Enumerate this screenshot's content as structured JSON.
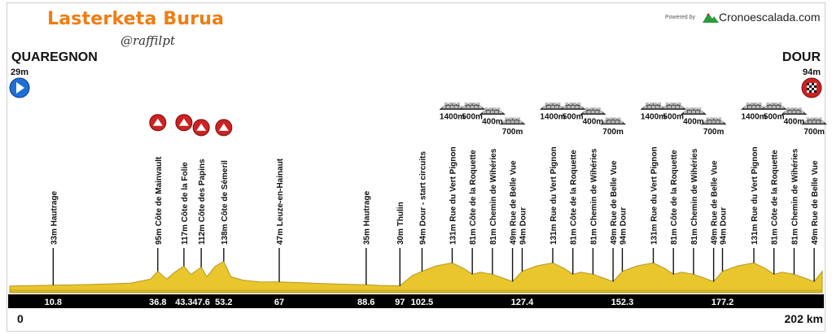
{
  "race": {
    "title": "Lasterketa Burua",
    "author": "@raffilpt",
    "powered_by": "Powered by",
    "brand": "Cronoescalada.com",
    "distance_total": "202 km",
    "distance_start": "0"
  },
  "start": {
    "name": "QUAREGNON",
    "altitude": "29m",
    "icon": "start-arrow-icon"
  },
  "finish": {
    "name": "DOUR",
    "altitude": "94m",
    "icon": "finish-flag-icon"
  },
  "colors": {
    "title": "#f07d12",
    "terrain": "#e9c62c",
    "terrain_dark": "#b59722",
    "axis_bar": "#000000",
    "climb_badge": "#cc2222",
    "start_badge": "#1f6fd6"
  },
  "chart_data": {
    "type": "area",
    "xlabel": "",
    "ylabel": "",
    "xlim": [
      0,
      202
    ],
    "distance_labels": [
      "10.8",
      "36.8",
      "43.3",
      "47.6",
      "53.2",
      "67",
      "88.6",
      "97",
      "102.5",
      "127.4",
      "152.3",
      "177.2"
    ],
    "profile": [
      [
        0,
        29
      ],
      [
        5,
        31
      ],
      [
        10.8,
        33
      ],
      [
        20,
        36
      ],
      [
        30,
        42
      ],
      [
        35,
        60
      ],
      [
        36.8,
        95
      ],
      [
        39,
        60
      ],
      [
        41,
        90
      ],
      [
        43.3,
        117
      ],
      [
        45,
        80
      ],
      [
        47.6,
        112
      ],
      [
        49,
        70
      ],
      [
        51,
        115
      ],
      [
        53.2,
        138
      ],
      [
        55,
        70
      ],
      [
        58,
        55
      ],
      [
        62,
        48
      ],
      [
        67,
        47
      ],
      [
        75,
        42
      ],
      [
        82,
        38
      ],
      [
        88.6,
        35
      ],
      [
        92,
        32
      ],
      [
        97,
        30
      ],
      [
        100,
        75
      ],
      [
        102.5,
        94
      ],
      [
        106,
        118
      ],
      [
        110,
        131
      ],
      [
        113,
        105
      ],
      [
        115,
        81
      ],
      [
        117,
        90
      ],
      [
        120,
        81
      ],
      [
        123,
        62
      ],
      [
        125,
        49
      ],
      [
        127.4,
        94
      ],
      [
        131,
        118
      ],
      [
        135,
        131
      ],
      [
        138,
        105
      ],
      [
        140,
        81
      ],
      [
        142,
        90
      ],
      [
        145,
        81
      ],
      [
        148,
        62
      ],
      [
        150,
        49
      ],
      [
        152.3,
        94
      ],
      [
        156,
        118
      ],
      [
        160,
        131
      ],
      [
        163,
        105
      ],
      [
        165,
        81
      ],
      [
        167,
        90
      ],
      [
        170,
        81
      ],
      [
        173,
        62
      ],
      [
        175,
        49
      ],
      [
        177.2,
        94
      ],
      [
        181,
        118
      ],
      [
        185,
        131
      ],
      [
        188,
        105
      ],
      [
        190,
        81
      ],
      [
        192,
        90
      ],
      [
        195,
        81
      ],
      [
        198,
        62
      ],
      [
        200,
        49
      ],
      [
        202,
        94
      ]
    ],
    "ylim": [
      0,
      450
    ],
    "markers": [
      {
        "km": 10.8,
        "label": "33m  Hautrage",
        "climb": false
      },
      {
        "km": 36.8,
        "label": "95m  Côte de Mainvault",
        "climb": true
      },
      {
        "km": 43.3,
        "label": "117m  Côte de la Folie",
        "climb": true
      },
      {
        "km": 47.6,
        "label": "112m  Côte des Papins",
        "climb": true
      },
      {
        "km": 53.2,
        "label": "138m  Côte de Sémeril",
        "climb": true
      },
      {
        "km": 67,
        "label": "47m  Leuze-en-Hainaut",
        "climb": false
      },
      {
        "km": 88.6,
        "label": "35m  Hautrage",
        "climb": false
      },
      {
        "km": 97,
        "label": "30m  Thulin",
        "climb": false
      },
      {
        "km": 102.5,
        "label": "94m  Dour - start circuits",
        "climb": false
      },
      {
        "km": 110,
        "label": "131m  Rue du Vert Pignon",
        "climb": false,
        "sector": "1400m"
      },
      {
        "km": 115,
        "label": "81m  Côte de la Roquette",
        "climb": false,
        "sector": "500m"
      },
      {
        "km": 120,
        "label": "81m  Chemin de Wihéries",
        "climb": false,
        "sector": "400m"
      },
      {
        "km": 125,
        "label": "49m  Rue de Belle Vue",
        "climb": false,
        "sector": "700m"
      },
      {
        "km": 127.4,
        "label": "94m  Dour",
        "climb": false
      },
      {
        "km": 135,
        "label": "131m  Rue du Vert Pignon",
        "climb": false,
        "sector": "1400m"
      },
      {
        "km": 140,
        "label": "81m  Côte de la Roquette",
        "climb": false,
        "sector": "500m"
      },
      {
        "km": 145,
        "label": "81m  Chemin de Wihéries",
        "climb": false,
        "sector": "400m"
      },
      {
        "km": 150,
        "label": "49m  Rue de Belle Vue",
        "climb": false,
        "sector": "700m"
      },
      {
        "km": 152.3,
        "label": "94m  Dour",
        "climb": false
      },
      {
        "km": 160,
        "label": "131m  Rue du Vert Pignon",
        "climb": false,
        "sector": "1400m"
      },
      {
        "km": 165,
        "label": "81m  Côte de la Roquette",
        "climb": false,
        "sector": "500m"
      },
      {
        "km": 170,
        "label": "81m  Chemin de Wihéries",
        "climb": false,
        "sector": "400m"
      },
      {
        "km": 175,
        "label": "49m  Rue de Belle Vue",
        "climb": false,
        "sector": "700m"
      },
      {
        "km": 177.2,
        "label": "94m  Dour",
        "climb": false
      },
      {
        "km": 185,
        "label": "131m  Rue du Vert Pignon",
        "climb": false,
        "sector": "1400m"
      },
      {
        "km": 190,
        "label": "81m  Côte de la Roquette",
        "climb": false,
        "sector": "500m"
      },
      {
        "km": 195,
        "label": "81m  Chemin de Wihéries",
        "climb": false,
        "sector": "400m"
      },
      {
        "km": 200,
        "label": "49m  Rue de Belle Vue",
        "climb": false,
        "sector": "700m"
      }
    ]
  }
}
